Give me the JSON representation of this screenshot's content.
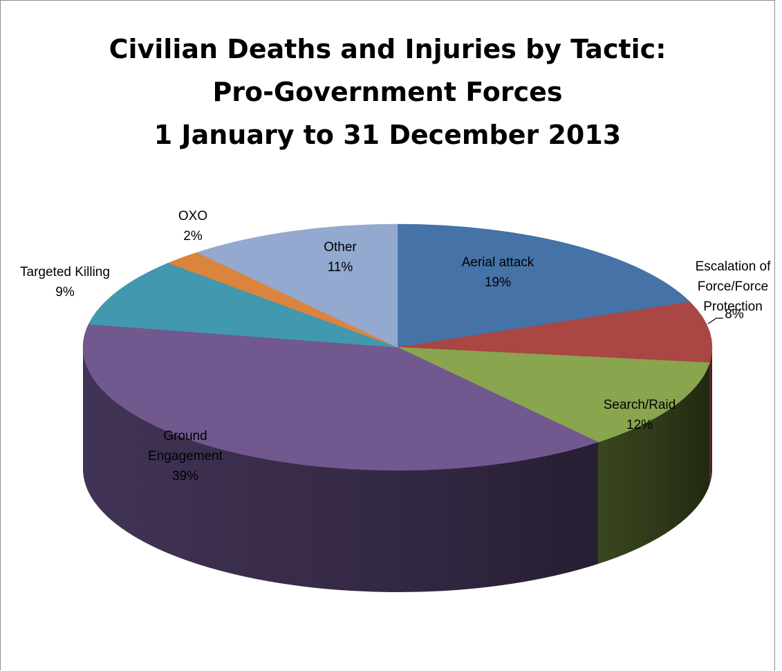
{
  "chart_data": {
    "type": "pie",
    "three_d": true,
    "title_lines": [
      "Civilian Deaths and Injuries by Tactic:",
      "Pro-Government Forces",
      "1 January to 31 December 2013"
    ],
    "slices": [
      {
        "key": "aerial",
        "label_lines": [
          "Aerial attack"
        ],
        "value": 19,
        "value_label": "19%",
        "color": "#4572A7",
        "side": "#2c4a6e"
      },
      {
        "key": "escalation",
        "label_lines": [
          "Escalation of",
          "Force/Force",
          "Protection"
        ],
        "value": 8,
        "value_label": "8%",
        "color": "#AA4643",
        "side": "#6e2d2b"
      },
      {
        "key": "search",
        "label_lines": [
          "Search/Raid"
        ],
        "value": 12,
        "value_label": "12%",
        "color": "#89A54E",
        "side": "#3c4a1f"
      },
      {
        "key": "ground",
        "label_lines": [
          "Ground",
          "Engagement"
        ],
        "value": 39,
        "value_label": "39%",
        "color": "#71588F",
        "side": "#45365a"
      },
      {
        "key": "targeted",
        "label_lines": [
          "Targeted Killing"
        ],
        "value": 9,
        "value_label": "9%",
        "color": "#4198AF",
        "side": "#26606f"
      },
      {
        "key": "oxo",
        "label_lines": [
          "OXO"
        ],
        "value": 2,
        "value_label": "2%",
        "color": "#DB843D",
        "side": "#8a5020"
      },
      {
        "key": "other",
        "label_lines": [
          "Other"
        ],
        "value": 11,
        "value_label": "11%",
        "color": "#93A9CF",
        "side": "#5c6e8f"
      }
    ]
  }
}
